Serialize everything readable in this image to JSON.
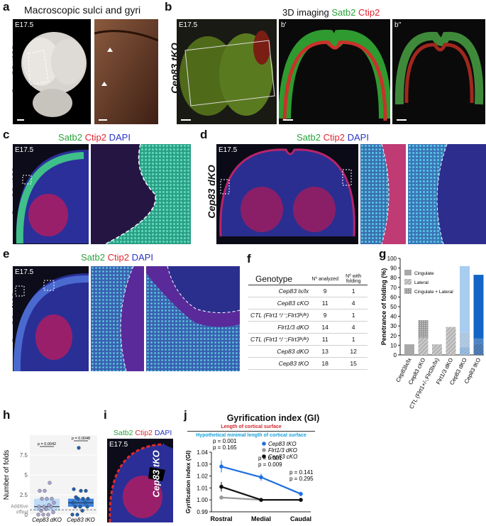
{
  "panels": {
    "a": {
      "letter": "a",
      "title": "Macroscopic sulci and gyri",
      "genotype": "Cep83 tKO",
      "stage": "E17.5"
    },
    "b": {
      "letter": "b",
      "title_prefix": "3D imaging",
      "stain1": "Satb2",
      "stain2": "Ctip2",
      "genotype": "Cep83 tKO",
      "stage": "E17.5",
      "sub1": "b'",
      "sub2": "b''"
    },
    "c": {
      "letter": "c",
      "stain1": "Satb2",
      "stain2": "Ctip2",
      "stain3": "DAPI",
      "genotype": "Cep83 tKO",
      "stage": "E17.5"
    },
    "d": {
      "letter": "d",
      "stain1": "Satb2",
      "stain2": "Ctip2",
      "stain3": "DAPI",
      "genotype": "Cep83 dKO",
      "stage": "E17.5"
    },
    "e": {
      "letter": "e",
      "stain1": "Satb2",
      "stain2": "Ctip2",
      "stain3": "DAPI",
      "genotype": "Cep83 dKO",
      "stage": "E17.5"
    },
    "f": {
      "letter": "f"
    },
    "g": {
      "letter": "g"
    },
    "h": {
      "letter": "h"
    },
    "i": {
      "letter": "i",
      "stain1": "Satb2",
      "stain2": "Ctip2",
      "stain3": "DAPI",
      "genotype": "Cep83 tKO",
      "stage": "E17.5"
    },
    "j": {
      "letter": "j",
      "title": "Gyrification index (GI)",
      "formula_top": "Length of cortical surface",
      "formula_bottom": "Hypothetical minimal length of cortical surface"
    }
  },
  "table_f": {
    "headers": [
      "Genotype",
      "Nº analyzed",
      "Nº with folding"
    ],
    "rows": [
      {
        "genotype": "Cep83 lx/lx",
        "analyzed": "9",
        "folding": "1"
      },
      {
        "genotype": "Cep83 cKO",
        "analyzed": "11",
        "folding": "4"
      },
      {
        "genotype": "CTL (Flrt1⁺/⁻;Flrt3ˡˣ/ˡˣ)",
        "analyzed": "9",
        "folding": "1"
      },
      {
        "genotype": "Flrt1/3 dKO",
        "analyzed": "14",
        "folding": "4"
      },
      {
        "genotype": "CTL (Flrt1⁺/⁻;Flrt3ˡˣ/ˡˣ)",
        "analyzed": "11",
        "folding": "1"
      },
      {
        "genotype": "Cep83 dKO",
        "analyzed": "13",
        "folding": "12"
      },
      {
        "genotype": "Cep83 tKO",
        "analyzed": "18",
        "folding": "15"
      }
    ]
  },
  "chart_data": [
    {
      "panel": "g",
      "type": "bar",
      "ylabel": "Penetrance of folding (%)",
      "ylim": [
        0,
        100
      ],
      "yticks": [
        0,
        10,
        20,
        30,
        40,
        50,
        60,
        70,
        80,
        90,
        100
      ],
      "categories": [
        "Cep83lx/lx",
        "Cep83 cKO",
        "CTL (Flrt1+/-;Flrt3lx/lx)",
        "Flrt1/3 dKO",
        "Cep83 dKO",
        "Cep83 tKO"
      ],
      "legend": [
        "Cingulate",
        "Lateral",
        "Cingulate + Lateral"
      ],
      "legend_position": "top-left",
      "stacks": [
        [
          {
            "kind": "cingulate",
            "value": 11
          }
        ],
        [
          {
            "kind": "lateral",
            "value": 18
          },
          {
            "kind": "combined",
            "value": 18
          }
        ],
        [
          {
            "kind": "lateral",
            "value": 11
          }
        ],
        [
          {
            "kind": "lateral",
            "value": 29
          }
        ],
        [
          {
            "kind": "combined",
            "value": 8
          },
          {
            "kind": "lateral",
            "value": 15
          },
          {
            "kind": "cingulate",
            "value": 69
          }
        ],
        [
          {
            "kind": "combined",
            "value": 11
          },
          {
            "kind": "lateral",
            "value": 6
          },
          {
            "kind": "cingulate",
            "value": 66
          }
        ]
      ]
    },
    {
      "panel": "h",
      "type": "box",
      "ylabel": "Number of folds",
      "ylim": [
        0,
        10
      ],
      "yticks": [
        0,
        2.5,
        5,
        7.5
      ],
      "categories": [
        "Cep83 dKO",
        "Cep83 tKO"
      ],
      "baseline_label": [
        "Additive",
        "effect"
      ],
      "baseline_value": 0.6,
      "pvalues": [
        "p = 0.0042",
        "p = 0.0048"
      ],
      "boxes": [
        {
          "q1": 0.5,
          "median": 1,
          "q3": 2
        },
        {
          "q1": 1,
          "median": 1.5,
          "q3": 2
        }
      ],
      "points": [
        [
          0,
          0,
          0,
          0.3,
          0.5,
          0.7,
          1,
          1,
          1,
          1.2,
          1.5,
          2,
          2,
          2,
          3,
          3,
          4
        ],
        [
          0,
          0,
          0.5,
          1,
          1,
          1,
          1.5,
          1.5,
          2,
          2,
          2,
          2.2,
          3,
          3,
          3.2,
          8.4
        ]
      ]
    },
    {
      "panel": "j",
      "type": "line",
      "ylabel": "Gyrification index (GI)",
      "ylim": [
        0.99,
        1.04
      ],
      "yticks": [
        0.99,
        1.0,
        1.01,
        1.02,
        1.03,
        1.04
      ],
      "x": [
        "Rostral",
        "Medial",
        "Caudal"
      ],
      "legend_position": "top-right",
      "series": [
        {
          "name": "Cep83 tKO",
          "color": "#1f6fe0",
          "values": [
            1.028,
            1.019,
            1.005
          ],
          "err": [
            0.005,
            0.003,
            0.002
          ]
        },
        {
          "name": "Flrt1/3 dKO",
          "color": "#999999",
          "values": [
            1.002,
            1.0,
            1.0
          ],
          "err": [
            0.001,
            0,
            0
          ]
        },
        {
          "name": "Cep83 cKO",
          "color": "#111111",
          "values": [
            1.011,
            1.0,
            1.0
          ],
          "err": [
            0.004,
            0,
            0
          ]
        }
      ],
      "annotations": [
        [
          "p = 0.001",
          "p = 0.165"
        ],
        [
          "p = 0.001",
          "p = 0.009"
        ],
        [
          "p = 0.141",
          "p = 0.295"
        ]
      ]
    }
  ]
}
